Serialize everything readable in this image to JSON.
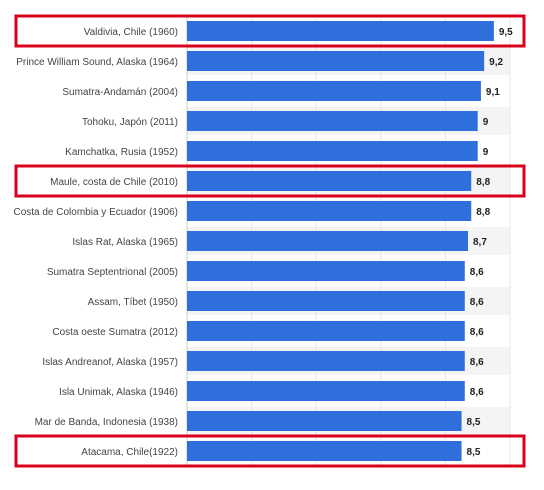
{
  "chart_data": {
    "type": "bar",
    "orientation": "horizontal",
    "title": "",
    "xlabel": "",
    "ylabel": "",
    "xlim": [
      0,
      10
    ],
    "grid": true,
    "categories": [
      "Valdivia, Chile (1960)",
      "Prince William Sound, Alaska (1964)",
      "Sumatra-Andamán (2004)",
      "Tohoku, Japón (2011)",
      "Kamchatka, Rusia (1952)",
      "Maule, costa de Chile (2010)",
      "Costa de Colombia y Ecuador (1906)",
      "Islas Rat, Alaska (1965)",
      "Sumatra Septentrional (2005)",
      "Assam, Tíbet (1950)",
      "Costa oeste Sumatra (2012)",
      "Islas Andreanof, Alaska (1957)",
      "Isla Unimak, Alaska (1946)",
      "Mar de Banda, Indonesia (1938)",
      "Atacama, Chile(1922)"
    ],
    "values": [
      9.5,
      9.2,
      9.1,
      9,
      9,
      8.8,
      8.8,
      8.7,
      8.6,
      8.6,
      8.6,
      8.6,
      8.6,
      8.5,
      8.5
    ],
    "value_labels": [
      "9,5",
      "9,2",
      "9,1",
      "9",
      "9",
      "8,8",
      "8,8",
      "8,7",
      "8,6",
      "8,6",
      "8,6",
      "8,6",
      "8,6",
      "8,5",
      "8,5"
    ],
    "highlighted_categories": [
      "Valdivia, Chile (1960)",
      "Maule, costa de Chile (2010)",
      "Atacama, Chile(1922)"
    ]
  },
  "colors": {
    "bar": "#2f6fdc",
    "highlight_box": "#d9001b",
    "gridline": "#e6e6e6",
    "row_band": "#f4f4f4",
    "category_text": "#444444",
    "value_text": "#222222"
  }
}
